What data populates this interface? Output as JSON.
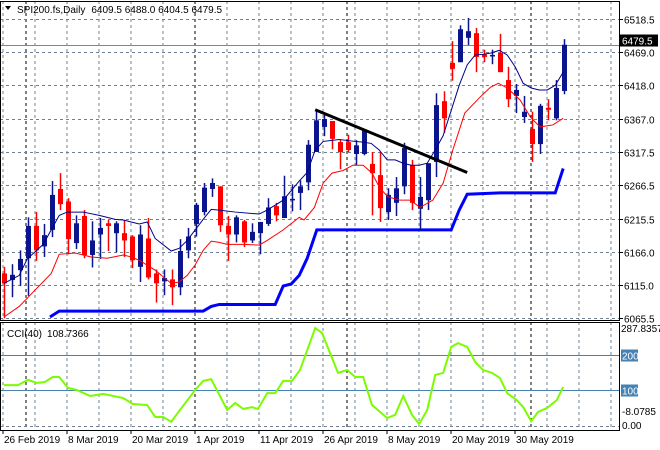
{
  "header": {
    "symbol_label": "SPI200.fs,Daily",
    "ohlc_label": "6409.5 6488.0 6404.5 6479.5"
  },
  "colors": {
    "bull": "#0a148c",
    "bear": "#ff0000",
    "ma_fast": "#00008b",
    "ma_slow": "#ff0000",
    "channel": "#0000ff",
    "trendline": "#000000",
    "cci": "#7cfc00",
    "level": "#4682b4",
    "grid": "#708090"
  },
  "chart_data": [
    {
      "type": "candlestick",
      "title": "SPI200.fs,Daily",
      "ylim": [
        6065.5,
        6518.5
      ],
      "y_ticks": [
        "6518.5",
        "6469.0",
        "6418.0",
        "6367.0",
        "6317.5",
        "6266.5",
        "6215.5",
        "6166.0",
        "6115.0",
        "6065.5"
      ],
      "y_tick_values": [
        6518.5,
        6469.0,
        6418.0,
        6367.0,
        6317.5,
        6266.5,
        6215.5,
        6166.0,
        6115.0,
        6065.5
      ],
      "current_price": 6479.5,
      "current_price_label": "6479.5",
      "x_tick_labels": [
        "26 Feb 2019",
        "8 Mar 2019",
        "20 Mar 2019",
        "1 Apr 2019",
        "11 Apr 2019",
        "26 Apr 2019",
        "8 May 2019",
        "20 May 2019",
        "30 May 2019"
      ],
      "x_tick_bars": [
        0,
        8,
        16,
        24,
        32,
        40,
        48,
        56,
        64
      ],
      "month_start_bars": [
        2.9,
        24,
        43,
        66
      ],
      "candles_ohlc": [
        [
          6133,
          6143,
          6065,
          6118
        ],
        [
          6123,
          6147,
          6097,
          6131
        ],
        [
          6138,
          6168,
          6114,
          6155
        ],
        [
          6156,
          6218,
          6099,
          6205
        ],
        [
          6205,
          6226,
          6152,
          6168
        ],
        [
          6174,
          6208,
          6158,
          6191
        ],
        [
          6199,
          6273,
          6188,
          6252
        ],
        [
          6261,
          6285,
          6229,
          6238
        ],
        [
          6242,
          6247,
          6162,
          6185
        ],
        [
          6179,
          6221,
          6170,
          6209
        ],
        [
          6220,
          6229,
          6156,
          6161
        ],
        [
          6161,
          6212,
          6142,
          6183
        ],
        [
          6192,
          6217,
          6155,
          6202
        ],
        [
          6209,
          6214,
          6167,
          6205
        ],
        [
          6194,
          6212,
          6165,
          6209
        ],
        [
          6194,
          6214,
          6158,
          6183
        ],
        [
          6189,
          6191,
          6141,
          6153
        ],
        [
          6143,
          6206,
          6120,
          6192
        ],
        [
          6186,
          6217,
          6124,
          6127
        ],
        [
          6133,
          6139,
          6089,
          6118
        ],
        [
          6121,
          6139,
          6100,
          6126
        ],
        [
          6124,
          6139,
          6085,
          6112
        ],
        [
          6112,
          6185,
          6100,
          6167
        ],
        [
          6168,
          6202,
          6156,
          6189
        ],
        [
          6208,
          6240,
          6189,
          6237
        ],
        [
          6226,
          6270,
          6221,
          6263
        ],
        [
          6261,
          6277,
          6249,
          6270
        ],
        [
          6265,
          6265,
          6196,
          6206
        ],
        [
          6205,
          6220,
          6152,
          6192
        ],
        [
          6192,
          6221,
          6180,
          6218
        ],
        [
          6212,
          6214,
          6173,
          6180
        ],
        [
          6183,
          6209,
          6179,
          6196
        ],
        [
          6194,
          6211,
          6162,
          6211
        ],
        [
          6208,
          6247,
          6205,
          6233
        ],
        [
          6235,
          6240,
          6212,
          6221
        ],
        [
          6217,
          6281,
          6217,
          6250
        ],
        [
          6244,
          6268,
          6227,
          6246
        ],
        [
          6255,
          6274,
          6229,
          6265
        ],
        [
          6271,
          6335,
          6259,
          6328
        ],
        [
          6317,
          6380,
          6317,
          6365
        ],
        [
          6355,
          6374,
          6341,
          6367
        ],
        [
          6364,
          6364,
          6321,
          6337
        ],
        [
          6332,
          6335,
          6291,
          6317
        ],
        [
          6332,
          6343,
          6317,
          6320
        ],
        [
          6314,
          6335,
          6297,
          6327
        ],
        [
          6314,
          6350,
          6312,
          6350
        ],
        [
          6299,
          6317,
          6221,
          6285
        ],
        [
          6282,
          6317,
          6211,
          6232
        ],
        [
          6226,
          6262,
          6214,
          6252
        ],
        [
          6240,
          6279,
          6220,
          6262
        ],
        [
          6265,
          6331,
          6253,
          6323
        ],
        [
          6297,
          6305,
          6229,
          6240
        ],
        [
          6231,
          6279,
          6197,
          6249
        ],
        [
          6244,
          6300,
          6229,
          6300
        ],
        [
          6302,
          6406,
          6279,
          6388
        ],
        [
          6394,
          6409,
          6346,
          6368
        ],
        [
          6452,
          6485,
          6425,
          6443
        ],
        [
          6453,
          6509,
          6453,
          6503
        ],
        [
          6490,
          6520,
          6479,
          6500
        ],
        [
          6497,
          6505,
          6438,
          6461
        ],
        [
          6465,
          6472,
          6453,
          6461
        ],
        [
          6462,
          6472,
          6450,
          6464
        ],
        [
          6467,
          6496,
          6438,
          6438
        ],
        [
          6426,
          6446,
          6385,
          6397
        ],
        [
          6402,
          6420,
          6376,
          6411
        ],
        [
          6370,
          6402,
          6361,
          6378
        ],
        [
          6352,
          6378,
          6302,
          6329
        ],
        [
          6329,
          6390,
          6314,
          6387
        ],
        [
          6384,
          6397,
          6365,
          6381
        ],
        [
          6368,
          6426,
          6365,
          6414
        ],
        [
          6409.5,
          6488.0,
          6404.5,
          6479.5
        ]
      ],
      "ma_fast": [
        [
          0,
          6118
        ],
        [
          1.9,
          6130
        ],
        [
          2.9,
          6155
        ],
        [
          4.9,
          6177
        ],
        [
          6.9,
          6221
        ],
        [
          7.9,
          6226
        ],
        [
          9.9,
          6226
        ],
        [
          11.9,
          6221
        ],
        [
          13.9,
          6215
        ],
        [
          14.9,
          6214
        ],
        [
          15.9,
          6211
        ],
        [
          16.9,
          6208
        ],
        [
          17.9,
          6211
        ],
        [
          18.9,
          6186
        ],
        [
          20.9,
          6167
        ],
        [
          21.9,
          6171
        ],
        [
          22.9,
          6183
        ],
        [
          24.9,
          6215
        ],
        [
          25.9,
          6230
        ],
        [
          26.9,
          6229
        ],
        [
          28.9,
          6226
        ],
        [
          31.9,
          6223
        ],
        [
          32.9,
          6229
        ],
        [
          34.9,
          6244
        ],
        [
          36.9,
          6273
        ],
        [
          37.9,
          6286
        ],
        [
          38.9,
          6320
        ],
        [
          39.9,
          6333
        ],
        [
          41.9,
          6336
        ],
        [
          43.9,
          6333
        ],
        [
          44.9,
          6332
        ],
        [
          45.9,
          6330
        ],
        [
          46.9,
          6320
        ],
        [
          47.9,
          6305
        ],
        [
          48.9,
          6305
        ],
        [
          49.9,
          6300
        ],
        [
          50.9,
          6297
        ],
        [
          51.9,
          6297
        ],
        [
          52.9,
          6300
        ],
        [
          53.9,
          6320
        ],
        [
          54.9,
          6342
        ],
        [
          55.9,
          6380
        ],
        [
          56.9,
          6418
        ],
        [
          57.9,
          6449
        ],
        [
          58.9,
          6464
        ],
        [
          59.9,
          6465
        ],
        [
          60.9,
          6467
        ],
        [
          61.9,
          6471
        ],
        [
          62.9,
          6464
        ],
        [
          63.9,
          6446
        ],
        [
          64.9,
          6421
        ],
        [
          65.9,
          6414
        ],
        [
          66.9,
          6411
        ],
        [
          67.9,
          6411
        ],
        [
          68.9,
          6418
        ],
        [
          69.9,
          6438
        ]
      ],
      "ma_slow": [
        [
          0,
          6067
        ],
        [
          1.9,
          6083
        ],
        [
          3.9,
          6108
        ],
        [
          5.9,
          6133
        ],
        [
          6.9,
          6162
        ],
        [
          8.9,
          6164
        ],
        [
          10.9,
          6158
        ],
        [
          12.9,
          6156
        ],
        [
          14.9,
          6161
        ],
        [
          15.9,
          6158
        ],
        [
          16.9,
          6153
        ],
        [
          18.9,
          6138
        ],
        [
          20.9,
          6118
        ],
        [
          21.9,
          6120
        ],
        [
          22.9,
          6130
        ],
        [
          23.9,
          6146
        ],
        [
          24.9,
          6168
        ],
        [
          25.9,
          6182
        ],
        [
          26.9,
          6180
        ],
        [
          27.9,
          6177
        ],
        [
          29.9,
          6177
        ],
        [
          31.9,
          6176
        ],
        [
          32.9,
          6183
        ],
        [
          34.9,
          6199
        ],
        [
          36.9,
          6218
        ],
        [
          37.5,
          6214
        ],
        [
          38.8,
          6233
        ],
        [
          39.9,
          6270
        ],
        [
          41,
          6285
        ],
        [
          42.4,
          6289
        ],
        [
          43.6,
          6297
        ],
        [
          44.9,
          6297
        ],
        [
          46,
          6285
        ],
        [
          47,
          6262
        ],
        [
          48,
          6249
        ],
        [
          49.5,
          6244
        ],
        [
          50.8,
          6244
        ],
        [
          52,
          6233
        ],
        [
          53.6,
          6244
        ],
        [
          54.9,
          6270
        ],
        [
          56.1,
          6320
        ],
        [
          57.6,
          6376
        ],
        [
          59.5,
          6400
        ],
        [
          60.8,
          6415
        ],
        [
          61.8,
          6421
        ],
        [
          62.9,
          6414
        ],
        [
          64.5,
          6396
        ],
        [
          65.8,
          6370
        ],
        [
          67,
          6355
        ],
        [
          68.6,
          6358
        ],
        [
          69.9,
          6368
        ]
      ],
      "channel_lower": [
        [
          5.75,
          6067
        ],
        [
          6.9,
          6076
        ],
        [
          24.9,
          6076
        ],
        [
          25.9,
          6083
        ],
        [
          26.9,
          6086
        ],
        [
          33.9,
          6086
        ],
        [
          34.9,
          6114
        ],
        [
          35.9,
          6117
        ],
        [
          36.9,
          6130
        ],
        [
          37.9,
          6156
        ],
        [
          39.1,
          6199
        ],
        [
          55.9,
          6199
        ],
        [
          56.9,
          6229
        ],
        [
          57.9,
          6253
        ],
        [
          62,
          6255
        ],
        [
          68.9,
          6255
        ],
        [
          69.9,
          6292
        ]
      ],
      "trendline": [
        [
          38.9,
          6381
        ],
        [
          57.9,
          6286
        ]
      ]
    },
    {
      "type": "line",
      "title": "CCI(40)",
      "value_label": "108.7366",
      "ylim": [
        -8.0785,
        287.8357
      ],
      "y_tick_labels": [
        "287.8357",
        "-8.0785",
        "0.00"
      ],
      "levels": [
        200,
        100
      ],
      "level_labels": [
        "200",
        "100"
      ],
      "points": [
        [
          0,
          114
        ],
        [
          1.75,
          114
        ],
        [
          3,
          129
        ],
        [
          4.1,
          120
        ],
        [
          5.1,
          123
        ],
        [
          6.1,
          137
        ],
        [
          6.9,
          137
        ],
        [
          8,
          106
        ],
        [
          9.1,
          100
        ],
        [
          10.75,
          83
        ],
        [
          12.4,
          89
        ],
        [
          14.9,
          77
        ],
        [
          16.1,
          60
        ],
        [
          17.9,
          57
        ],
        [
          18.9,
          23
        ],
        [
          19.9,
          23
        ],
        [
          20.9,
          9
        ],
        [
          22,
          43
        ],
        [
          23.9,
          100
        ],
        [
          24.9,
          126
        ],
        [
          25.9,
          131
        ],
        [
          27.9,
          43
        ],
        [
          28.9,
          63
        ],
        [
          29.9,
          46
        ],
        [
          31,
          51
        ],
        [
          31.75,
          46
        ],
        [
          32.9,
          91
        ],
        [
          33.9,
          91
        ],
        [
          34.9,
          126
        ],
        [
          36,
          126
        ],
        [
          37,
          157
        ],
        [
          38.9,
          277
        ],
        [
          39.75,
          263
        ],
        [
          41.75,
          149
        ],
        [
          42.9,
          157
        ],
        [
          43.9,
          137
        ],
        [
          44.9,
          137
        ],
        [
          46,
          57
        ],
        [
          47.9,
          20
        ],
        [
          48.9,
          29
        ],
        [
          49.9,
          83
        ],
        [
          51,
          29
        ],
        [
          51.9,
          3
        ],
        [
          52.9,
          43
        ],
        [
          53.9,
          143
        ],
        [
          54.9,
          149
        ],
        [
          55.9,
          223
        ],
        [
          56.75,
          234
        ],
        [
          57.9,
          223
        ],
        [
          58.9,
          180
        ],
        [
          59.9,
          157
        ],
        [
          61,
          149
        ],
        [
          62,
          134
        ],
        [
          62.9,
          91
        ],
        [
          64.1,
          71
        ],
        [
          64.9,
          51
        ],
        [
          65.9,
          11
        ],
        [
          66.75,
          37
        ],
        [
          67.9,
          49
        ],
        [
          69.1,
          71
        ],
        [
          69.9,
          108.7
        ]
      ]
    }
  ]
}
